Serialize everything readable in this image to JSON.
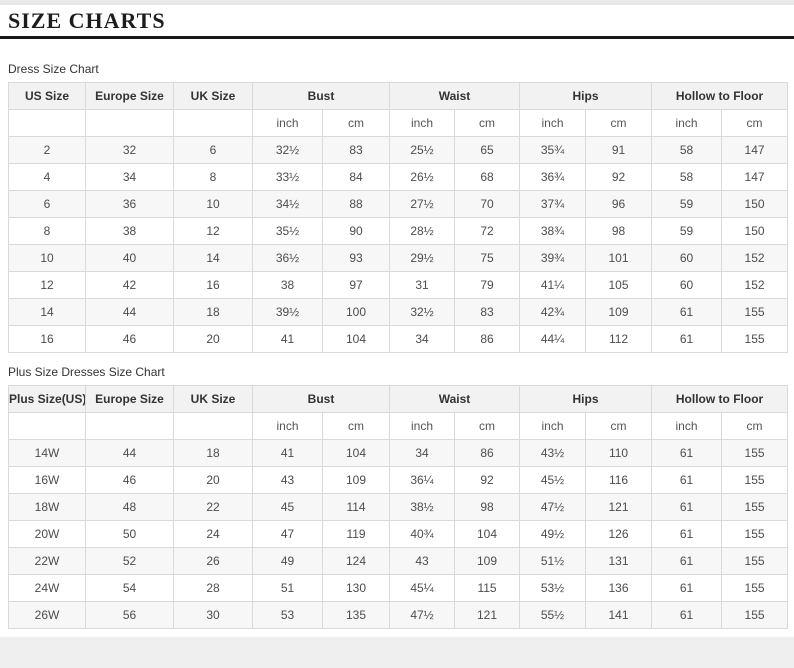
{
  "header": {
    "title": "SIZE CHARTS"
  },
  "colors": {
    "title_text": "#1d1d1d",
    "title_rule": "#181818",
    "table_border": "#d9d9d9",
    "header_bg": "#f2f2f2",
    "alt_row_bg": "#f7f7f7",
    "cell_text": "#4d4d4d",
    "page_edge_bg": "#e9e9e9"
  },
  "tables": [
    {
      "caption": "Dress Size Chart",
      "label_columns": [
        "US Size",
        "Europe Size",
        "UK Size"
      ],
      "measure_columns": [
        "Bust",
        "Waist",
        "Hips",
        "Hollow to Floor"
      ],
      "unit_labels": [
        "inch",
        "cm"
      ],
      "rows": [
        [
          "2",
          "32",
          "6",
          "32½",
          "83",
          "25½",
          "65",
          "35¾",
          "91",
          "58",
          "147"
        ],
        [
          "4",
          "34",
          "8",
          "33½",
          "84",
          "26½",
          "68",
          "36¾",
          "92",
          "58",
          "147"
        ],
        [
          "6",
          "36",
          "10",
          "34½",
          "88",
          "27½",
          "70",
          "37¾",
          "96",
          "59",
          "150"
        ],
        [
          "8",
          "38",
          "12",
          "35½",
          "90",
          "28½",
          "72",
          "38¾",
          "98",
          "59",
          "150"
        ],
        [
          "10",
          "40",
          "14",
          "36½",
          "93",
          "29½",
          "75",
          "39¾",
          "101",
          "60",
          "152"
        ],
        [
          "12",
          "42",
          "16",
          "38",
          "97",
          "31",
          "79",
          "41¼",
          "105",
          "60",
          "152"
        ],
        [
          "14",
          "44",
          "18",
          "39½",
          "100",
          "32½",
          "83",
          "42¾",
          "109",
          "61",
          "155"
        ],
        [
          "16",
          "46",
          "20",
          "41",
          "104",
          "34",
          "86",
          "44¼",
          "112",
          "61",
          "155"
        ]
      ]
    },
    {
      "caption": "Plus Size Dresses Size Chart",
      "label_columns": [
        "Plus Size(US)",
        "Europe Size",
        "UK Size"
      ],
      "measure_columns": [
        "Bust",
        "Waist",
        "Hips",
        "Hollow to Floor"
      ],
      "unit_labels": [
        "inch",
        "cm"
      ],
      "rows": [
        [
          "14W",
          "44",
          "18",
          "41",
          "104",
          "34",
          "86",
          "43½",
          "110",
          "61",
          "155"
        ],
        [
          "16W",
          "46",
          "20",
          "43",
          "109",
          "36¼",
          "92",
          "45½",
          "116",
          "61",
          "155"
        ],
        [
          "18W",
          "48",
          "22",
          "45",
          "114",
          "38½",
          "98",
          "47½",
          "121",
          "61",
          "155"
        ],
        [
          "20W",
          "50",
          "24",
          "47",
          "119",
          "40¾",
          "104",
          "49½",
          "126",
          "61",
          "155"
        ],
        [
          "22W",
          "52",
          "26",
          "49",
          "124",
          "43",
          "109",
          "51½",
          "131",
          "61",
          "155"
        ],
        [
          "24W",
          "54",
          "28",
          "51",
          "130",
          "45¼",
          "115",
          "53½",
          "136",
          "61",
          "155"
        ],
        [
          "26W",
          "56",
          "30",
          "53",
          "135",
          "47½",
          "121",
          "55½",
          "141",
          "61",
          "155"
        ]
      ]
    }
  ]
}
